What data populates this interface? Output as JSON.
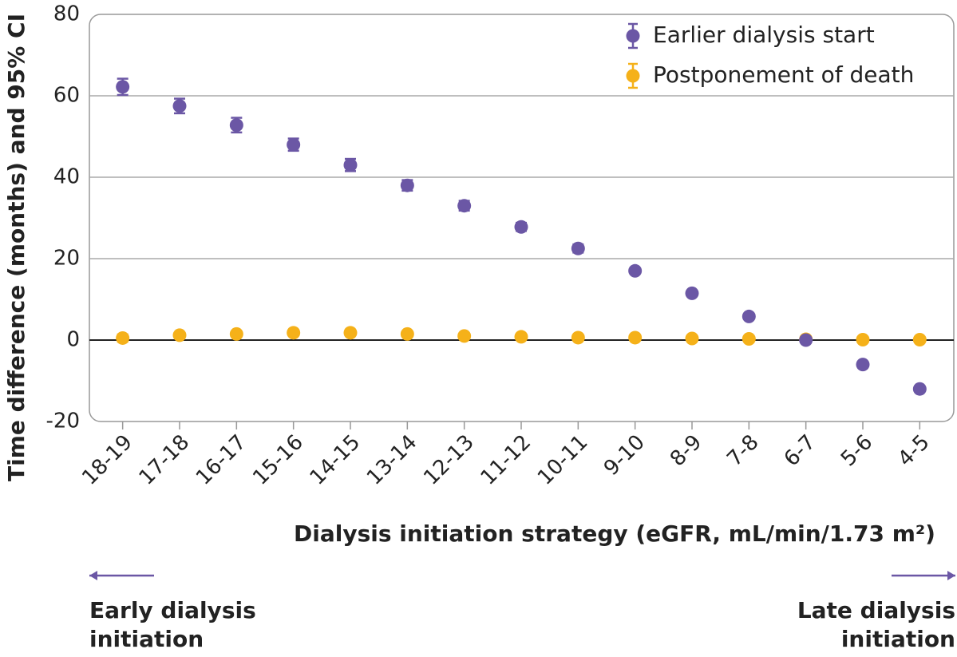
{
  "chart_data": {
    "type": "errorbar",
    "x_label": "Dialysis initiation strategy (eGFR, mL/min/1.73 m²)",
    "y_label": "Time difference (months) and 95% CI",
    "categories": [
      "18-19",
      "17-18",
      "16-17",
      "15-16",
      "14-15",
      "13-14",
      "12-13",
      "11-12",
      "10-11",
      "9-10",
      "8-9",
      "7-8",
      "6-7",
      "5-6",
      "4-5"
    ],
    "series": [
      {
        "name": "Earlier dialysis start",
        "color": "#6b57a5",
        "values": [
          62.2,
          57.5,
          52.8,
          48,
          43,
          38,
          33,
          27.8,
          22.5,
          17,
          11.5,
          5.8,
          0,
          -6,
          -12
        ],
        "errors": [
          2,
          1.8,
          1.8,
          1.5,
          1.5,
          1.3,
          1.2,
          1,
          1,
          0.6,
          0.5,
          0.5,
          0.5,
          0.5,
          0.5
        ]
      },
      {
        "name": "Postponement of death",
        "color": "#f5b119",
        "values": [
          0.5,
          1.2,
          1.5,
          1.8,
          1.8,
          1.5,
          1,
          0.8,
          0.6,
          0.6,
          0.4,
          0.3,
          0.2,
          0.1,
          0.1
        ],
        "errors": [
          0.9,
          0.4,
          0.4,
          0.4,
          0.4,
          0.4,
          0.3,
          0.3,
          0.3,
          0.3,
          0.3,
          0.3,
          0.3,
          0.3,
          0.3
        ]
      }
    ],
    "ylim": [
      -20,
      80
    ],
    "yticks": [
      -20,
      0,
      20,
      40,
      60,
      80
    ],
    "grid": true,
    "legend": "top-right",
    "annotations": [
      {
        "lines": [
          "Early dialysis",
          "initiation"
        ],
        "arrow": "left"
      },
      {
        "lines": [
          "Late dialysis",
          "initiation"
        ],
        "arrow": "right"
      }
    ]
  }
}
